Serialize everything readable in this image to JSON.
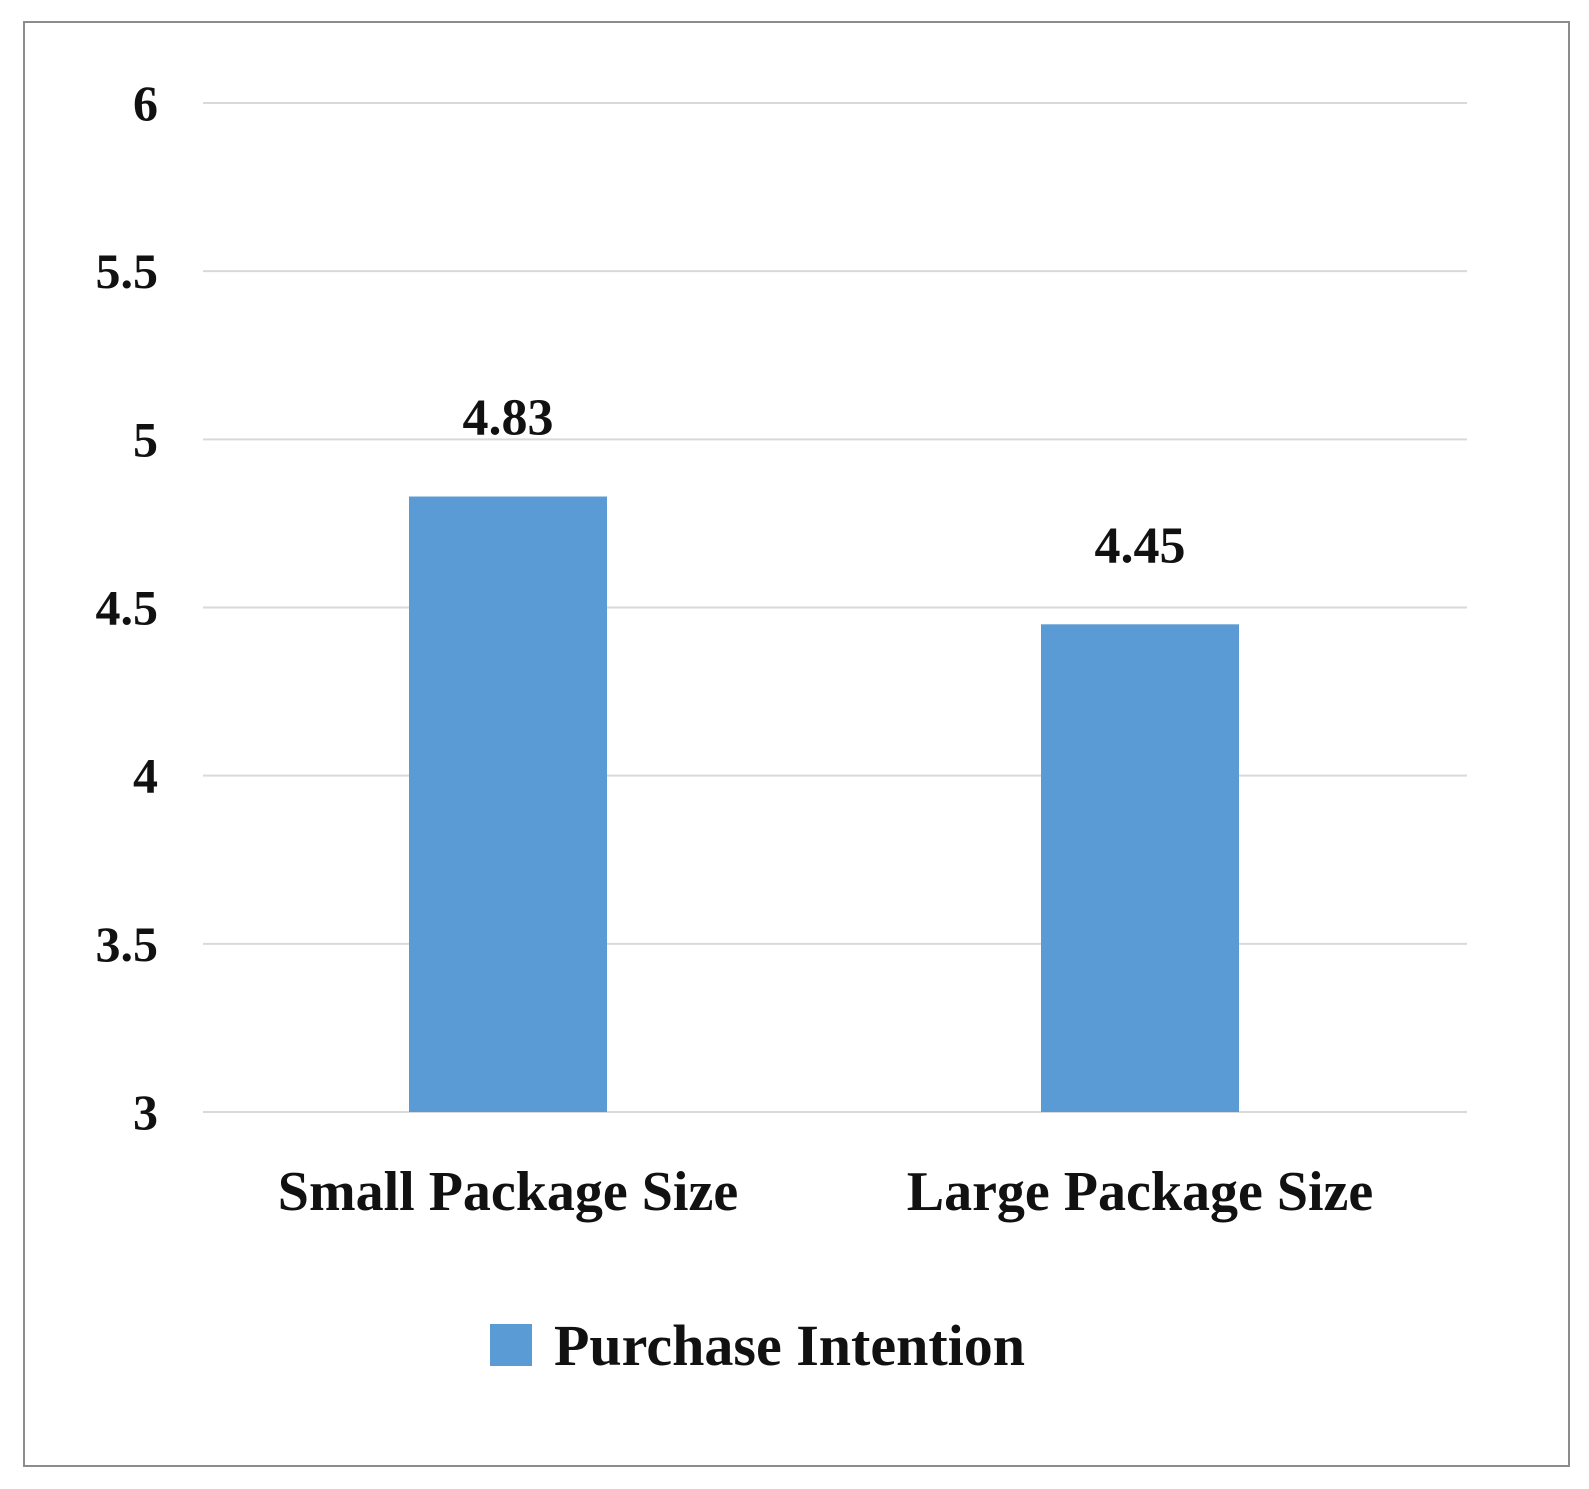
{
  "chart_data": {
    "type": "bar",
    "categories": [
      "Small Package Size",
      "Large Package Size"
    ],
    "series": [
      {
        "name": "Purchase Intention",
        "values": [
          4.83,
          4.45
        ],
        "color": "#5b9bd5"
      }
    ],
    "data_labels": [
      "4.83",
      "4.45"
    ],
    "yticks": [
      "3",
      "3.5",
      "4",
      "4.5",
      "5",
      "5.5",
      "6"
    ],
    "ylim": [
      3,
      6
    ],
    "title": "",
    "xlabel": "",
    "ylabel": "",
    "grid": true,
    "gridline_color": "#d9d9d9",
    "legend_position": "bottom"
  }
}
